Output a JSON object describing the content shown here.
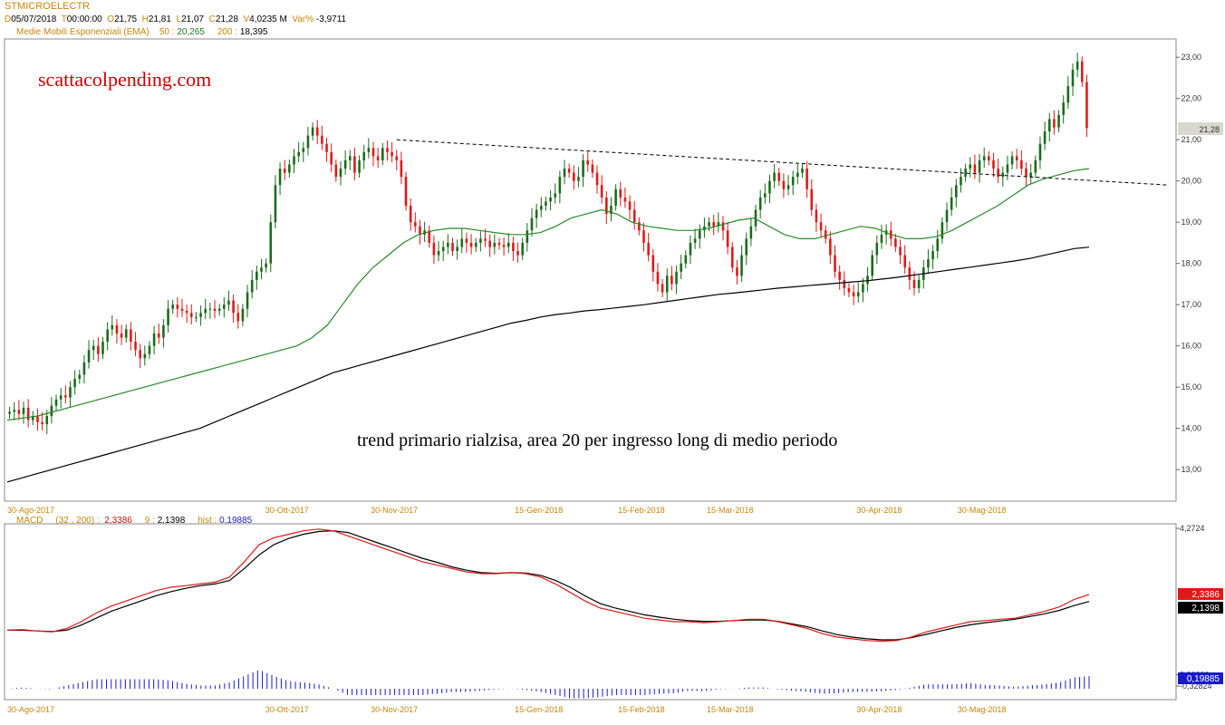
{
  "header": {
    "symbol": "STMICROELECTR",
    "d_label": "D",
    "date": "05/07/2018",
    "t_label": "T",
    "time": "00:00:00",
    "o_label": "O",
    "open": "21,75",
    "h_label": "H",
    "high": "21,81",
    "l_label": "L",
    "low": "21,07",
    "c_label": "C",
    "close": "21,28",
    "v_label": "V",
    "volume": "4,0235 M",
    "var_label": "Var%",
    "var": "-3,9711",
    "ema_label": "Medie Mobili Esponenziali (EMA)",
    "ema50_label": "50 :",
    "ema50": "20,265",
    "ema200_label": "200 :",
    "ema200": "18,395",
    "macd_label": "MACD",
    "macd_params": "(32 , 200) :",
    "macd_val": "2,3386",
    "signal_label": "9 :",
    "signal_val": "2,1398",
    "hist_label": "hist :",
    "hist_val": "0,19885"
  },
  "annotations": {
    "watermark": "scattacolpending.com",
    "comment": "trend primario rialzisa, area 20 per ingresso long di medio periodo"
  },
  "colors": {
    "bull": "#1a6b1a",
    "bear": "#e01818",
    "ema50": "#2a8a2a",
    "ema200": "#000000",
    "macd": "#e01818",
    "signal": "#000000",
    "hist": "#1a1acc",
    "watermark": "#cc0000",
    "dates": "#c8860a",
    "last_price_bg": "#d8d8d0"
  },
  "chart_data": [
    {
      "type": "candlestick",
      "title": "STMICROELECTR",
      "y_ticks": [
        "23,00",
        "22,00",
        "21,00",
        "20,00",
        "19,00",
        "18,00",
        "17,00",
        "16,00",
        "15,00",
        "14,00",
        "13,00"
      ],
      "ylim": [
        12.3,
        23.4
      ],
      "x_ticks": [
        "30-Ago-2017",
        "30-Ott-2017",
        "30-Nov-2017",
        "15-Gen-2018",
        "15-Feb-2018",
        "15-Mar-2018",
        "30-Apr-2018",
        "30-Mag-2018"
      ],
      "x_tick_index": [
        0,
        60,
        83,
        114,
        136,
        155,
        187,
        209
      ],
      "last_price_label": "21,28",
      "ohlc_close": [
        14.4,
        14.45,
        14.35,
        14.5,
        14.2,
        14.3,
        14.15,
        14.1,
        14.3,
        14.55,
        14.7,
        14.8,
        14.75,
        15.0,
        15.2,
        15.3,
        15.6,
        15.9,
        16.0,
        15.8,
        16.1,
        16.4,
        16.5,
        16.3,
        16.2,
        16.4,
        16.1,
        15.9,
        15.7,
        15.8,
        16.0,
        16.3,
        16.2,
        16.5,
        16.9,
        17.0,
        16.9,
        16.85,
        16.8,
        16.7,
        16.7,
        16.8,
        16.9,
        16.9,
        16.85,
        16.9,
        17.0,
        17.1,
        16.8,
        16.6,
        16.9,
        17.3,
        17.6,
        17.8,
        17.9,
        18.0,
        19.0,
        19.9,
        20.3,
        20.2,
        20.4,
        20.6,
        20.7,
        20.8,
        21.1,
        21.3,
        21.1,
        20.9,
        20.7,
        20.4,
        20.1,
        20.3,
        20.5,
        20.6,
        20.2,
        20.5,
        20.7,
        20.8,
        20.6,
        20.5,
        20.8,
        20.7,
        20.6,
        20.5,
        20.1,
        19.4,
        19.0,
        18.9,
        18.7,
        18.8,
        18.5,
        18.2,
        18.3,
        18.4,
        18.5,
        18.3,
        18.4,
        18.6,
        18.5,
        18.4,
        18.5,
        18.6,
        18.55,
        18.4,
        18.5,
        18.45,
        18.4,
        18.5,
        18.3,
        18.2,
        18.5,
        18.8,
        19.1,
        19.3,
        19.4,
        19.5,
        19.6,
        19.7,
        20.1,
        20.3,
        20.2,
        20.0,
        20.1,
        20.5,
        20.4,
        20.2,
        19.9,
        19.6,
        19.2,
        19.4,
        19.8,
        19.6,
        19.5,
        19.3,
        19.0,
        18.8,
        18.5,
        18.2,
        17.8,
        17.5,
        17.3,
        17.7,
        17.5,
        17.8,
        18.0,
        18.2,
        18.5,
        18.6,
        18.8,
        18.9,
        19.0,
        18.9,
        19.0,
        18.8,
        18.4,
        17.9,
        17.7,
        18.2,
        18.6,
        18.9,
        19.3,
        19.6,
        19.7,
        20.0,
        20.2,
        20.0,
        19.8,
        19.9,
        20.1,
        20.2,
        20.3,
        19.8,
        19.3,
        19.0,
        18.8,
        18.6,
        18.2,
        17.8,
        17.6,
        17.4,
        17.3,
        17.2,
        17.3,
        17.5,
        17.7,
        18.2,
        18.5,
        18.7,
        18.8,
        18.6,
        18.4,
        18.2,
        17.9,
        17.6,
        17.4,
        17.6,
        17.9,
        18.1,
        18.3,
        18.6,
        19.0,
        19.3,
        19.6,
        19.9,
        20.1,
        20.3,
        20.4,
        20.2,
        20.5,
        20.6,
        20.5,
        20.3,
        20.1,
        20.2,
        20.4,
        20.6,
        20.5,
        20.3,
        20.1,
        20.2,
        20.5,
        20.9,
        21.2,
        21.5,
        21.3,
        21.6,
        21.9,
        22.3,
        22.7,
        22.9,
        22.4,
        21.28
      ],
      "ema50": [
        14.2,
        14.25,
        14.3,
        14.4,
        14.5,
        14.6,
        14.7,
        14.8,
        14.9,
        15.0,
        15.1,
        15.2,
        15.3,
        15.4,
        15.5,
        15.6,
        15.7,
        15.8,
        15.9,
        16.0,
        16.2,
        16.5,
        17.0,
        17.5,
        17.9,
        18.2,
        18.5,
        18.7,
        18.8,
        18.85,
        18.85,
        18.8,
        18.75,
        18.7,
        18.7,
        18.75,
        18.9,
        19.1,
        19.2,
        19.3,
        19.2,
        19.0,
        18.9,
        18.85,
        18.8,
        18.8,
        18.85,
        18.95,
        19.05,
        19.1,
        18.9,
        18.7,
        18.6,
        18.6,
        18.7,
        18.8,
        18.9,
        18.85,
        18.7,
        18.6,
        18.6,
        18.65,
        18.8,
        19.0,
        19.2,
        19.4,
        19.65,
        19.9,
        20.05,
        20.15,
        20.25,
        20.3
      ],
      "ema200": [
        12.7,
        12.8,
        12.9,
        13.0,
        13.1,
        13.2,
        13.3,
        13.4,
        13.5,
        13.6,
        13.7,
        13.8,
        13.9,
        14.0,
        14.15,
        14.3,
        14.45,
        14.6,
        14.75,
        14.9,
        15.05,
        15.2,
        15.35,
        15.45,
        15.55,
        15.65,
        15.75,
        15.85,
        15.95,
        16.05,
        16.15,
        16.25,
        16.35,
        16.45,
        16.55,
        16.62,
        16.7,
        16.76,
        16.8,
        16.85,
        16.88,
        16.92,
        16.96,
        17.0,
        17.05,
        17.1,
        17.15,
        17.2,
        17.25,
        17.28,
        17.32,
        17.36,
        17.4,
        17.43,
        17.46,
        17.49,
        17.52,
        17.55,
        17.58,
        17.62,
        17.66,
        17.71,
        17.76,
        17.81,
        17.86,
        17.91,
        17.96,
        18.01,
        18.06,
        18.12,
        18.2,
        18.28,
        18.36,
        18.395
      ]
    },
    {
      "type": "line",
      "title": "MACD",
      "y_ticks": [
        "4,2724",
        "0,00000",
        "-0,32824"
      ],
      "ylim": [
        -0.32824,
        4.2724
      ],
      "series": [
        {
          "name": "MACD",
          "values": [
            1.3,
            1.32,
            1.28,
            1.25,
            1.35,
            1.55,
            1.8,
            2.0,
            2.15,
            2.3,
            2.45,
            2.55,
            2.6,
            2.65,
            2.7,
            2.85,
            3.3,
            3.8,
            4.0,
            4.1,
            4.2,
            4.25,
            4.2,
            4.05,
            3.9,
            3.75,
            3.6,
            3.45,
            3.3,
            3.2,
            3.1,
            3.0,
            2.95,
            2.95,
            2.98,
            2.95,
            2.85,
            2.65,
            2.4,
            2.15,
            1.95,
            1.85,
            1.75,
            1.65,
            1.6,
            1.55,
            1.55,
            1.52,
            1.55,
            1.58,
            1.62,
            1.62,
            1.55,
            1.45,
            1.35,
            1.2,
            1.1,
            1.05,
            1.0,
            0.98,
            1.0,
            1.1,
            1.25,
            1.35,
            1.45,
            1.55,
            1.58,
            1.62,
            1.65,
            1.75,
            1.85,
            1.98,
            2.2,
            2.3386
          ]
        },
        {
          "name": "9",
          "values": [
            1.3,
            1.3,
            1.28,
            1.26,
            1.3,
            1.45,
            1.65,
            1.85,
            2.0,
            2.15,
            2.3,
            2.42,
            2.52,
            2.6,
            2.65,
            2.75,
            3.1,
            3.5,
            3.8,
            3.98,
            4.1,
            4.18,
            4.2,
            4.15,
            4.0,
            3.85,
            3.7,
            3.55,
            3.4,
            3.28,
            3.15,
            3.05,
            2.98,
            2.96,
            2.98,
            2.97,
            2.9,
            2.75,
            2.55,
            2.3,
            2.08,
            1.95,
            1.85,
            1.75,
            1.68,
            1.62,
            1.58,
            1.56,
            1.56,
            1.58,
            1.6,
            1.6,
            1.56,
            1.48,
            1.4,
            1.28,
            1.17,
            1.1,
            1.05,
            1.02,
            1.02,
            1.08,
            1.18,
            1.28,
            1.38,
            1.46,
            1.52,
            1.57,
            1.62,
            1.7,
            1.78,
            1.88,
            2.02,
            2.1398
          ]
        }
      ],
      "histogram": {
        "name": "hist",
        "last": 0.19885
      }
    }
  ]
}
